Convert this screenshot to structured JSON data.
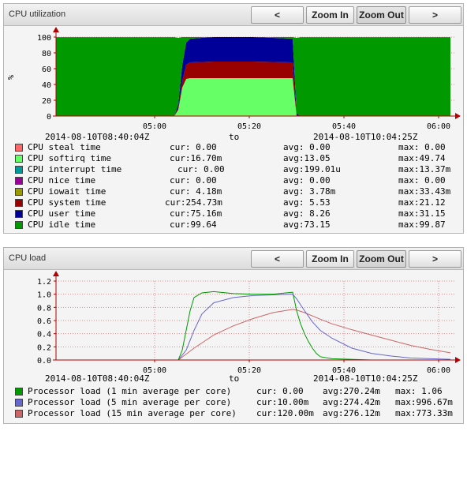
{
  "panels": [
    {
      "title": "CPU utilization",
      "buttons": {
        "prev": "<",
        "zoom_in": "Zoom In",
        "zoom_out": "Zoom Out",
        "next": ">"
      },
      "range": {
        "start": "2014-08-10T08:40:04Z",
        "to": "to",
        "end": "2014-08-10T10:04:25Z"
      },
      "legend": [
        {
          "label": "CPU steal time",
          "cur": "cur: 0.00",
          "avg": "avg: 0.00",
          "max": "max: 0.00",
          "color": "#ff6666"
        },
        {
          "label": "CPU softirq time",
          "cur": "cur:16.70m",
          "avg": "avg:13.05",
          "max": "max:49.74",
          "color": "#66ff66"
        },
        {
          "label": "CPU interrupt time",
          "cur": "cur: 0.00",
          "avg": "avg:199.01u",
          "max": "max:13.37m",
          "color": "#009999"
        },
        {
          "label": "CPU nice time",
          "cur": "cur: 0.00",
          "avg": "avg: 0.00",
          "max": "max: 0.00",
          "color": "#990099"
        },
        {
          "label": "CPU iowait time",
          "cur": "cur: 4.18m",
          "avg": "avg: 3.78m",
          "max": "max:33.43m",
          "color": "#999900"
        },
        {
          "label": "CPU system time",
          "cur": "cur:254.73m",
          "avg": "avg: 5.53",
          "max": "max:21.12",
          "color": "#990000"
        },
        {
          "label": "CPU user time",
          "cur": "cur:75.16m",
          "avg": "avg: 8.26",
          "max": "max:31.15",
          "color": "#000099"
        },
        {
          "label": "CPU idle time",
          "cur": "cur:99.64",
          "avg": "avg:73.15",
          "max": "max:99.87",
          "color": "#009900"
        }
      ]
    },
    {
      "title": "CPU load",
      "buttons": {
        "prev": "<",
        "zoom_in": "Zoom In",
        "zoom_out": "Zoom Out",
        "next": ">"
      },
      "range": {
        "start": "2014-08-10T08:40:04Z",
        "to": "to",
        "end": "2014-08-10T10:04:25Z"
      },
      "legend": [
        {
          "label": "Processor load (1 min average per core)",
          "cur": "cur: 0.00",
          "avg": "avg:270.24m",
          "max": "max: 1.06",
          "color": "#009900"
        },
        {
          "label": "Processor load (5 min average per core)",
          "cur": "cur:10.00m",
          "avg": "avg:274.42m",
          "max": "max:996.67m",
          "color": "#6666cc"
        },
        {
          "label": "Processor load (15 min average per core)",
          "cur": "cur:120.00m",
          "avg": "avg:276.12m",
          "max": "max:773.33m",
          "color": "#cc6666"
        }
      ]
    }
  ],
  "chart_data": [
    {
      "type": "area",
      "stacked": true,
      "ylabel": "%",
      "ylim": [
        0,
        100
      ],
      "yticks": [
        "0",
        "20",
        "40",
        "60",
        "80",
        "100"
      ],
      "xticks": [
        "05:00",
        "05:20",
        "05:40",
        "06:00"
      ],
      "grid": true,
      "x": [
        0,
        10,
        20,
        30,
        31,
        32,
        33,
        34,
        40,
        50,
        60,
        61,
        62,
        63,
        70,
        80,
        90,
        100
      ],
      "series": [
        {
          "name": "CPU softirq time",
          "color": "#66ff66",
          "values": [
            0,
            0,
            0,
            0,
            8,
            36,
            47,
            48,
            48,
            48,
            48,
            0,
            0,
            0,
            0,
            0,
            0,
            0
          ]
        },
        {
          "name": "CPU system time",
          "color": "#990000",
          "values": [
            0,
            0,
            0,
            0,
            3,
            8,
            18,
            20,
            21,
            21,
            20,
            1,
            0,
            0,
            0,
            0,
            0,
            0
          ]
        },
        {
          "name": "CPU user time",
          "color": "#000099",
          "values": [
            0,
            0,
            0,
            0,
            4,
            20,
            28,
            30,
            31,
            31,
            30,
            2,
            0,
            0,
            0,
            0,
            0,
            0
          ]
        },
        {
          "name": "CPU idle time",
          "color": "#009900",
          "values": [
            99.9,
            99.9,
            99.9,
            99.9,
            84,
            36,
            7,
            2,
            0,
            0,
            2,
            96,
            99.9,
            99.9,
            99.9,
            99.9,
            99.9,
            99.9
          ]
        }
      ]
    },
    {
      "type": "line",
      "ylim": [
        0,
        1.2
      ],
      "yticks": [
        "0.0",
        "0.2",
        "0.4",
        "0.6",
        "0.8",
        "1.0",
        "1.2"
      ],
      "xticks": [
        "05:00",
        "05:20",
        "05:40",
        "06:00"
      ],
      "grid": true,
      "series": [
        {
          "name": "Processor load (1 min average per core)",
          "color": "#009900",
          "x": [
            0,
            31,
            32,
            33,
            34,
            35,
            37,
            40,
            45,
            50,
            55,
            60,
            61,
            62,
            63,
            64,
            65,
            66,
            67,
            70,
            80,
            90,
            100
          ],
          "y": [
            0,
            0,
            0.15,
            0.45,
            0.75,
            0.95,
            1.02,
            1.04,
            1.01,
            1.0,
            1.0,
            1.03,
            0.75,
            0.55,
            0.4,
            0.28,
            0.18,
            0.1,
            0.05,
            0.02,
            0,
            0,
            0
          ]
        },
        {
          "name": "Processor load (5 min average per core)",
          "color": "#6666cc",
          "x": [
            0,
            31,
            33,
            35,
            37,
            40,
            45,
            50,
            55,
            60,
            61,
            63,
            65,
            67,
            70,
            75,
            80,
            85,
            90,
            95,
            100
          ],
          "y": [
            0,
            0,
            0.15,
            0.45,
            0.7,
            0.87,
            0.95,
            0.98,
            0.99,
            1.0,
            0.93,
            0.75,
            0.58,
            0.45,
            0.33,
            0.18,
            0.1,
            0.06,
            0.03,
            0.02,
            0.01
          ]
        },
        {
          "name": "Processor load (15 min average per core)",
          "color": "#cc6666",
          "x": [
            0,
            31,
            35,
            40,
            45,
            50,
            55,
            60,
            61,
            63,
            67,
            70,
            75,
            80,
            85,
            90,
            95,
            100
          ],
          "y": [
            0,
            0,
            0.18,
            0.38,
            0.52,
            0.63,
            0.72,
            0.77,
            0.76,
            0.72,
            0.62,
            0.55,
            0.46,
            0.38,
            0.3,
            0.22,
            0.16,
            0.11
          ]
        }
      ]
    }
  ]
}
